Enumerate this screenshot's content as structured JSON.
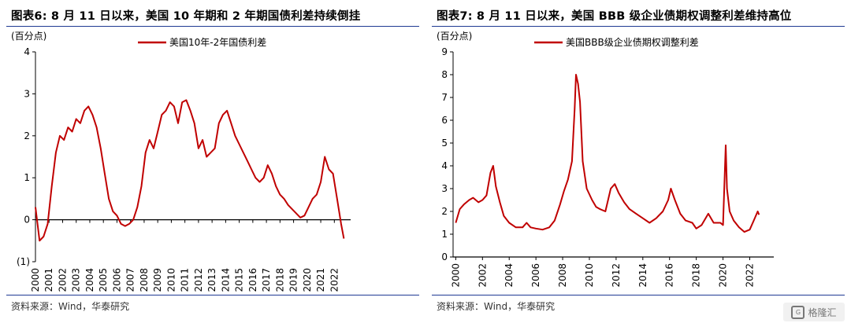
{
  "figures": [
    {
      "title": "图表6:   8 月 11 日以来，美国 10 年期和 2 年期国债利差持续倒挂",
      "source": "资料来源：Wind，华泰研究"
    },
    {
      "title": "图表7:   8 月 11 日以来，美国 BBB 级企业债期权调整利差维持高位",
      "source": "资料来源：Wind，华泰研究"
    }
  ],
  "watermark": {
    "text": "格隆汇"
  },
  "colors": {
    "line": "#c00000",
    "rule": "#1f3a93",
    "axis": "#000000"
  },
  "chart_data": [
    {
      "type": "line",
      "unit_label": "(百分点)",
      "legend": "美国10年-2年国债利差",
      "legend_position": "top-center",
      "ylim": [
        -1,
        4
      ],
      "yticks": [
        -1,
        0,
        1,
        2,
        3,
        4
      ],
      "ytick_labels": [
        "(1)",
        "0",
        "1",
        "2",
        "3",
        "4"
      ],
      "xlim": [
        2000,
        2023.2
      ],
      "xticks": [
        2000,
        2001,
        2002,
        2003,
        2004,
        2005,
        2006,
        2007,
        2008,
        2009,
        2010,
        2011,
        2012,
        2013,
        2014,
        2015,
        2016,
        2017,
        2018,
        2019,
        2020,
        2021,
        2022
      ],
      "grid": false,
      "series": [
        {
          "name": "美国10年-2年国债利差",
          "x": [
            2000.0,
            2000.3,
            2000.6,
            2000.9,
            2001.2,
            2001.5,
            2001.8,
            2002.1,
            2002.4,
            2002.7,
            2003.0,
            2003.3,
            2003.6,
            2003.9,
            2004.2,
            2004.5,
            2004.8,
            2005.1,
            2005.4,
            2005.7,
            2006.0,
            2006.3,
            2006.6,
            2006.9,
            2007.2,
            2007.5,
            2007.8,
            2008.1,
            2008.4,
            2008.7,
            2009.0,
            2009.3,
            2009.6,
            2009.9,
            2010.2,
            2010.5,
            2010.8,
            2011.1,
            2011.4,
            2011.7,
            2012.0,
            2012.3,
            2012.6,
            2012.9,
            2013.2,
            2013.5,
            2013.8,
            2014.1,
            2014.4,
            2014.7,
            2015.0,
            2015.3,
            2015.6,
            2015.9,
            2016.2,
            2016.5,
            2016.8,
            2017.1,
            2017.4,
            2017.7,
            2018.0,
            2018.3,
            2018.6,
            2018.9,
            2019.2,
            2019.5,
            2019.8,
            2020.1,
            2020.4,
            2020.7,
            2021.0,
            2021.3,
            2021.6,
            2021.9,
            2022.2,
            2022.5,
            2022.7
          ],
          "y": [
            0.3,
            -0.5,
            -0.4,
            -0.1,
            0.8,
            1.6,
            2.0,
            1.9,
            2.2,
            2.1,
            2.4,
            2.3,
            2.6,
            2.7,
            2.5,
            2.2,
            1.7,
            1.1,
            0.5,
            0.2,
            0.1,
            -0.1,
            -0.15,
            -0.1,
            0.0,
            0.3,
            0.8,
            1.6,
            1.9,
            1.7,
            2.1,
            2.5,
            2.6,
            2.8,
            2.7,
            2.3,
            2.8,
            2.85,
            2.6,
            2.3,
            1.7,
            1.9,
            1.5,
            1.6,
            1.7,
            2.3,
            2.5,
            2.6,
            2.3,
            2.0,
            1.8,
            1.6,
            1.4,
            1.2,
            1.0,
            0.9,
            1.0,
            1.3,
            1.1,
            0.8,
            0.6,
            0.5,
            0.35,
            0.25,
            0.15,
            0.05,
            0.1,
            0.3,
            0.5,
            0.6,
            0.9,
            1.5,
            1.2,
            1.1,
            0.5,
            -0.1,
            -0.45
          ]
        }
      ]
    },
    {
      "type": "line",
      "unit_label": "(百分点)",
      "legend": "美国BBB级企业债期权调整利差",
      "legend_position": "top-center",
      "ylim": [
        0,
        9
      ],
      "yticks": [
        0,
        1,
        2,
        3,
        4,
        5,
        6,
        7,
        8,
        9
      ],
      "ytick_labels": [
        "0",
        "1",
        "2",
        "3",
        "4",
        "5",
        "6",
        "7",
        "8",
        "9"
      ],
      "xlim": [
        1999.8,
        2023.8
      ],
      "xticks": [
        2000,
        2002,
        2004,
        2006,
        2008,
        2010,
        2012,
        2014,
        2016,
        2018,
        2020,
        2022
      ],
      "grid": false,
      "series": [
        {
          "name": "美国BBB级企业债期权调整利差",
          "x": [
            2000.0,
            2000.3,
            2000.6,
            2001.0,
            2001.3,
            2001.7,
            2002.0,
            2002.3,
            2002.6,
            2002.8,
            2003.0,
            2003.3,
            2003.6,
            2004.0,
            2004.5,
            2005.0,
            2005.3,
            2005.6,
            2006.0,
            2006.5,
            2007.0,
            2007.4,
            2007.8,
            2008.1,
            2008.4,
            2008.7,
            2008.9,
            2009.0,
            2009.15,
            2009.3,
            2009.5,
            2009.8,
            2010.2,
            2010.5,
            2010.8,
            2011.2,
            2011.6,
            2011.9,
            2012.2,
            2012.6,
            2013.0,
            2013.5,
            2014.0,
            2014.5,
            2015.0,
            2015.5,
            2015.9,
            2016.1,
            2016.4,
            2016.8,
            2017.2,
            2017.7,
            2018.0,
            2018.4,
            2018.9,
            2019.3,
            2019.8,
            2020.0,
            2020.2,
            2020.3,
            2020.5,
            2020.8,
            2021.2,
            2021.6,
            2022.0,
            2022.3,
            2022.6,
            2022.7
          ],
          "y": [
            1.5,
            2.1,
            2.3,
            2.5,
            2.6,
            2.4,
            2.5,
            2.7,
            3.7,
            4.0,
            3.1,
            2.4,
            1.8,
            1.5,
            1.3,
            1.3,
            1.5,
            1.3,
            1.25,
            1.2,
            1.3,
            1.6,
            2.3,
            2.9,
            3.4,
            4.2,
            6.5,
            8.0,
            7.6,
            6.8,
            4.2,
            3.0,
            2.5,
            2.2,
            2.1,
            2.0,
            3.0,
            3.2,
            2.8,
            2.4,
            2.1,
            1.9,
            1.7,
            1.5,
            1.7,
            2.0,
            2.5,
            3.0,
            2.5,
            1.9,
            1.6,
            1.5,
            1.25,
            1.4,
            1.9,
            1.5,
            1.5,
            1.4,
            4.9,
            3.0,
            2.0,
            1.6,
            1.3,
            1.1,
            1.2,
            1.6,
            2.0,
            1.85
          ]
        }
      ]
    }
  ]
}
